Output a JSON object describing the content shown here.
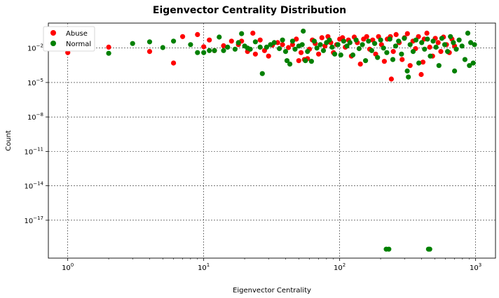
{
  "chart_data": {
    "type": "scatter",
    "title": "Eigenvector Centrality Distribution",
    "xlabel": "Eigenvector Centrality",
    "ylabel": "Count",
    "xscale": "log",
    "yscale": "log",
    "xlim": [
      0.72,
      1400
    ],
    "ylim": [
      5e-21,
      1.5
    ],
    "grid": true,
    "legend_position": "top-left",
    "x_ticks": [
      {
        "value": 1,
        "label": "10^0"
      },
      {
        "value": 10,
        "label": "10^1"
      },
      {
        "value": 100,
        "label": "10^2"
      },
      {
        "value": 1000,
        "label": "10^3"
      }
    ],
    "y_ticks": [
      {
        "value": 0.01,
        "label": "10^-2"
      },
      {
        "value": 1e-05,
        "label": "10^-5"
      },
      {
        "value": 1e-08,
        "label": "10^-8"
      },
      {
        "value": 1e-11,
        "label": "10^-11"
      },
      {
        "value": 1e-14,
        "label": "10^-14"
      },
      {
        "value": 1e-17,
        "label": "10^-17"
      }
    ],
    "series": [
      {
        "name": "Abuse",
        "color": "#ff0000",
        "points": [
          [
            1,
            0.004
          ],
          [
            2,
            0.012
          ],
          [
            4,
            0.005
          ],
          [
            6,
            0.0005
          ],
          [
            7,
            0.1
          ],
          [
            9,
            0.15
          ],
          [
            10,
            0.013
          ],
          [
            11,
            0.05
          ],
          [
            12,
            0.006
          ],
          [
            14,
            0.016
          ],
          [
            16,
            0.04
          ],
          [
            18,
            0.02
          ],
          [
            19,
            0.04
          ],
          [
            21,
            0.005
          ],
          [
            23,
            0.2
          ],
          [
            24,
            0.003
          ],
          [
            26,
            0.05
          ],
          [
            28,
            0.006
          ],
          [
            30,
            0.002
          ],
          [
            32,
            0.018
          ],
          [
            35,
            0.03
          ],
          [
            38,
            0.02
          ],
          [
            42,
            0.011
          ],
          [
            45,
            0.02
          ],
          [
            48,
            0.06
          ],
          [
            50,
            0.0008
          ],
          [
            52,
            0.004
          ],
          [
            55,
            0.001
          ],
          [
            58,
            0.0012
          ],
          [
            60,
            0.008
          ],
          [
            63,
            0.05
          ],
          [
            66,
            0.025
          ],
          [
            70,
            0.003
          ],
          [
            74,
            0.08
          ],
          [
            78,
            0.015
          ],
          [
            82,
            0.1
          ],
          [
            86,
            0.03
          ],
          [
            90,
            0.004
          ],
          [
            95,
            0.02
          ],
          [
            100,
            0.06
          ],
          [
            105,
            0.08
          ],
          [
            110,
            0.012
          ],
          [
            116,
            0.05
          ],
          [
            122,
            0.002
          ],
          [
            128,
            0.09
          ],
          [
            135,
            0.03
          ],
          [
            142,
            0.0004
          ],
          [
            150,
            0.06
          ],
          [
            158,
            0.1
          ],
          [
            166,
            0.008
          ],
          [
            175,
            0.05
          ],
          [
            184,
            0.003
          ],
          [
            193,
            0.1
          ],
          [
            203,
            0.02
          ],
          [
            213,
            0.0007
          ],
          [
            224,
            0.06
          ],
          [
            236,
            0.1
          ],
          [
            248,
            0.005
          ],
          [
            260,
            0.15
          ],
          [
            274,
            0.03
          ],
          [
            288,
            0.001
          ],
          [
            300,
            0.08
          ],
          [
            315,
            0.18
          ],
          [
            330,
            0.0003
          ],
          [
            346,
            0.04
          ],
          [
            362,
            0.009
          ],
          [
            380,
            0.1
          ],
          [
            398,
            5e-05
          ],
          [
            418,
            0.06
          ],
          [
            438,
            0.2
          ],
          [
            460,
            0.012
          ],
          [
            482,
            0.002
          ],
          [
            505,
            0.07
          ],
          [
            530,
            0.03
          ],
          [
            555,
            0.005
          ],
          [
            580,
            0.09
          ],
          [
            610,
            0.02
          ],
          [
            640,
            0.004
          ],
          [
            670,
            0.06
          ],
          [
            700,
            0.015
          ],
          [
            240,
            2e-05
          ],
          [
            410,
            0.0006
          ]
        ]
      },
      {
        "name": "Normal",
        "color": "#008000",
        "points": [
          [
            1,
            0.012
          ],
          [
            2,
            0.0035
          ],
          [
            3,
            0.025
          ],
          [
            4,
            0.035
          ],
          [
            5,
            0.011
          ],
          [
            6,
            0.04
          ],
          [
            8,
            0.02
          ],
          [
            9,
            0.004
          ],
          [
            10,
            0.004
          ],
          [
            11,
            0.006
          ],
          [
            12,
            0.006
          ],
          [
            13,
            0.09
          ],
          [
            14,
            0.006
          ],
          [
            15,
            0.012
          ],
          [
            17,
            0.008
          ],
          [
            18,
            0.03
          ],
          [
            19,
            0.18
          ],
          [
            20,
            0.015
          ],
          [
            21,
            0.01
          ],
          [
            22,
            0.008
          ],
          [
            24,
            0.035
          ],
          [
            26,
            0.012
          ],
          [
            27,
            6e-05
          ],
          [
            29,
            0.012
          ],
          [
            31,
            0.02
          ],
          [
            33,
            0.03
          ],
          [
            36,
            0.009
          ],
          [
            38,
            0.05
          ],
          [
            40,
            0.005
          ],
          [
            41,
            0.0008
          ],
          [
            43,
            0.0004
          ],
          [
            45,
            0.04
          ],
          [
            47,
            0.008
          ],
          [
            50,
            0.015
          ],
          [
            53,
            0.02
          ],
          [
            54,
            0.3
          ],
          [
            56,
            0.0008
          ],
          [
            58,
            0.005
          ],
          [
            62,
            0.0007
          ],
          [
            65,
            0.04
          ],
          [
            68,
            0.01
          ],
          [
            72,
            0.02
          ],
          [
            76,
            0.006
          ],
          [
            80,
            0.03
          ],
          [
            84,
            0.05
          ],
          [
            88,
            0.012
          ],
          [
            92,
            0.003
          ],
          [
            97,
            0.02
          ],
          [
            102,
            0.0025
          ],
          [
            107,
            0.04
          ],
          [
            113,
            0.015
          ],
          [
            119,
            0.03
          ],
          [
            125,
            0.0025
          ],
          [
            132,
            0.05
          ],
          [
            139,
            0.009
          ],
          [
            147,
            0.02
          ],
          [
            155,
            0.0008
          ],
          [
            163,
            0.04
          ],
          [
            172,
            0.006
          ],
          [
            181,
            0.025
          ],
          [
            190,
            0.0015
          ],
          [
            200,
            0.05
          ],
          [
            210,
            0.01
          ],
          [
            220,
            3e-20
          ],
          [
            230,
            3e-20
          ],
          [
            222,
            0.004
          ],
          [
            234,
            0.06
          ],
          [
            246,
            0.001
          ],
          [
            258,
            0.015
          ],
          [
            271,
            0.04
          ],
          [
            285,
            0.003
          ],
          [
            299,
            0.07
          ],
          [
            314,
            0.0001
          ],
          [
            320,
            3e-05
          ],
          [
            330,
            0.02
          ],
          [
            347,
            0.005
          ],
          [
            364,
            0.05
          ],
          [
            382,
            0.0005
          ],
          [
            401,
            0.03
          ],
          [
            421,
            0.008
          ],
          [
            442,
            0.06
          ],
          [
            450,
            3e-20
          ],
          [
            460,
            3e-20
          ],
          [
            464,
            0.002
          ],
          [
            487,
            0.04
          ],
          [
            511,
            0.012
          ],
          [
            537,
            0.0003
          ],
          [
            564,
            0.07
          ],
          [
            592,
            0.02
          ],
          [
            622,
            0.005
          ],
          [
            653,
            0.1
          ],
          [
            686,
            0.03
          ],
          [
            700,
            0.0001
          ],
          [
            720,
            0.008
          ],
          [
            756,
            0.05
          ],
          [
            794,
            0.015
          ],
          [
            834,
            0.001
          ],
          [
            876,
            0.2
          ],
          [
            900,
            0.0003
          ],
          [
            920,
            0.03
          ],
          [
            960,
            0.0005
          ],
          [
            980,
            0.02
          ]
        ]
      }
    ]
  }
}
